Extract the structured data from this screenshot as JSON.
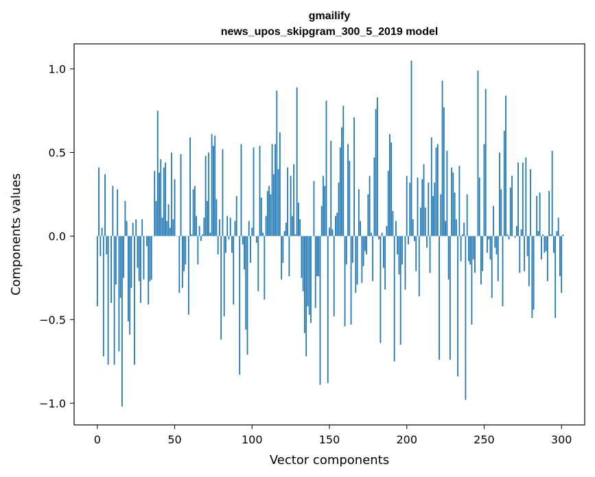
{
  "chart_data": {
    "type": "bar",
    "title": "gmailify",
    "subtitle": "news_upos_skipgram_300_5_2019 model",
    "xlabel": "Vector components",
    "ylabel": "Components values",
    "xlim": [
      -15,
      315
    ],
    "ylim": [
      -1.13,
      1.15
    ],
    "x_ticks": [
      0,
      50,
      100,
      150,
      200,
      250,
      300
    ],
    "y_ticks": [
      -1.0,
      -0.5,
      0.0,
      0.5,
      1.0
    ],
    "x_tick_labels": [
      "0",
      "50",
      "100",
      "150",
      "200",
      "250",
      "300"
    ],
    "y_tick_labels": [
      "−1.0",
      "−0.5",
      "0.0",
      "0.5",
      "1.0"
    ],
    "grid": false,
    "bar_color": "#1f77b4",
    "values": [
      -0.42,
      0.41,
      -0.12,
      0.05,
      -0.72,
      0.37,
      -0.11,
      -0.77,
      0.0,
      -0.4,
      0.3,
      -0.77,
      -0.29,
      0.28,
      -0.69,
      -0.37,
      -1.02,
      -0.25,
      0.21,
      0.09,
      -0.51,
      -0.59,
      -0.31,
      0.08,
      -0.77,
      0.1,
      -0.19,
      -0.27,
      -0.4,
      0.1,
      -0.26,
      0.0,
      -0.06,
      -0.41,
      -0.27,
      -0.26,
      0.0,
      0.39,
      0.21,
      0.75,
      0.38,
      0.46,
      0.11,
      0.41,
      0.44,
      0.09,
      0.19,
      0.05,
      0.5,
      0.1,
      0.34,
      0.0,
      0.0,
      -0.34,
      0.49,
      -0.31,
      -0.21,
      -0.17,
      0.0,
      -0.47,
      0.59,
      0.01,
      0.28,
      0.3,
      0.12,
      -0.17,
      0.06,
      -0.03,
      0.01,
      0.11,
      0.48,
      0.21,
      0.5,
      0.02,
      0.61,
      0.54,
      0.6,
      0.22,
      -0.11,
      0.1,
      -0.62,
      0.52,
      -0.48,
      -0.1,
      0.12,
      -0.02,
      0.11,
      -0.1,
      -0.41,
      0.09,
      0.24,
      0.0,
      -0.83,
      0.55,
      -0.05,
      -0.2,
      -0.56,
      -0.71,
      0.09,
      -0.16,
      0.05,
      0.53,
      0.0,
      -0.04,
      -0.33,
      0.54,
      0.23,
      0.02,
      -0.38,
      0.12,
      0.27,
      0.3,
      0.25,
      0.55,
      0.37,
      0.55,
      0.87,
      0.4,
      0.62,
      -0.26,
      -0.16,
      0.03,
      0.08,
      0.41,
      -0.24,
      0.36,
      0.12,
      0.43,
      0.01,
      0.89,
      0.2,
      0.1,
      -0.25,
      -0.33,
      -0.58,
      -0.72,
      -0.42,
      -0.47,
      -0.52,
      0.0,
      0.33,
      -0.43,
      -0.24,
      -0.24,
      -0.89,
      0.18,
      0.36,
      0.3,
      0.81,
      -0.88,
      0.05,
      0.57,
      0.04,
      -0.48,
      0.12,
      0.14,
      0.32,
      0.53,
      0.65,
      0.78,
      -0.54,
      -0.17,
      0.55,
      0.45,
      -0.53,
      -0.16,
      0.71,
      -0.34,
      -0.29,
      0.28,
      0.09,
      -0.28,
      -0.18,
      -0.09,
      -0.11,
      0.25,
      0.36,
      0.02,
      -0.27,
      0.47,
      0.76,
      0.83,
      -0.02,
      -0.64,
      0.02,
      -0.19,
      -0.32,
      0.06,
      0.39,
      0.61,
      0.56,
      0.15,
      -0.75,
      0.09,
      -0.11,
      -0.23,
      -0.65,
      -0.17,
      0.0,
      -0.32,
      0.36,
      -0.05,
      0.32,
      1.05,
      0.1,
      -0.03,
      -0.21,
      0.35,
      -0.36,
      0.17,
      0.34,
      0.43,
      0.17,
      -0.07,
      0.32,
      -0.22,
      0.59,
      0.24,
      0.32,
      0.53,
      0.55,
      -0.74,
      0.25,
      0.93,
      0.77,
      0.09,
      0.51,
      -0.26,
      -0.74,
      0.41,
      0.38,
      0.26,
      0.1,
      -0.84,
      0.42,
      -0.15,
      0.01,
      0.08,
      -0.98,
      0.25,
      -0.15,
      -0.17,
      -0.53,
      -0.14,
      -0.22,
      0.0,
      0.99,
      0.35,
      -0.29,
      -0.21,
      0.55,
      0.88,
      -0.1,
      -0.02,
      -0.14,
      -0.37,
      0.18,
      -0.07,
      -0.11,
      -0.27,
      0.5,
      0.28,
      -0.42,
      0.63,
      0.84,
      0.01,
      -0.02,
      0.29,
      0.36,
      0.0,
      -0.01,
      0.06,
      0.44,
      -0.22,
      0.04,
      0.44,
      -0.21,
      0.47,
      -0.12,
      -0.3,
      0.4,
      -0.49,
      -0.44,
      0.0,
      0.24,
      0.03,
      0.26,
      -0.14,
      0.01,
      -0.1,
      -0.09,
      -0.27,
      0.27,
      0.01,
      0.51,
      -0.1,
      -0.49,
      0.03,
      0.11,
      -0.24,
      -0.34,
      0.01
    ]
  }
}
